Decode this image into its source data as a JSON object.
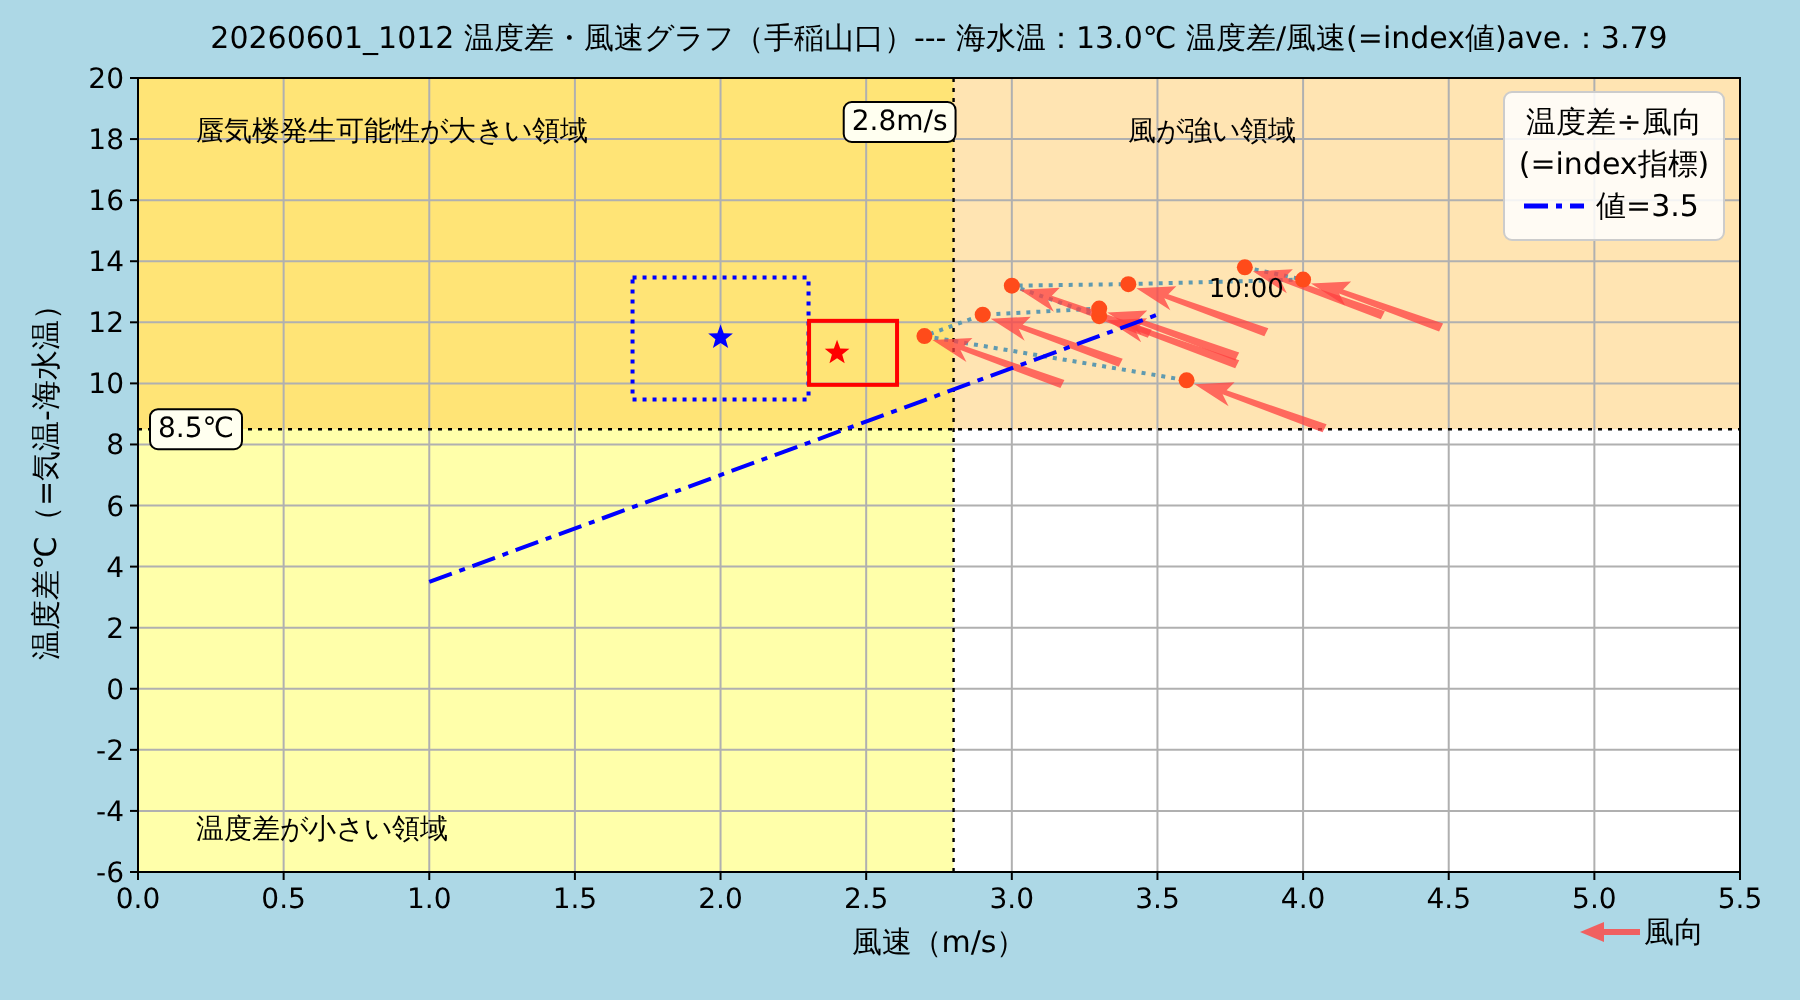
{
  "chart_data": {
    "type": "scatter",
    "title": "20260601_1012 温度差・風速グラフ（手稲山口）--- 海水温：13.0℃     温度差/風速(=index値)ave.：3.79",
    "xlabel": "風速（m/s）",
    "ylabel": "温度差℃（=気温-海水温）",
    "legend_title": "温度差÷風向\n(=index指標)",
    "xlim": [
      0,
      5.5
    ],
    "ylim": [
      -6,
      20
    ],
    "xticks": [
      {
        "value": 0,
        "label": "0.0"
      },
      {
        "value": 0.5,
        "label": "0.5"
      },
      {
        "value": 1,
        "label": "1.0"
      },
      {
        "value": 1.5,
        "label": "1.5"
      },
      {
        "value": 2,
        "label": "2.0"
      },
      {
        "value": 2.5,
        "label": "2.5"
      },
      {
        "value": 3,
        "label": "3.0"
      },
      {
        "value": 3.5,
        "label": "3.5"
      },
      {
        "value": 4,
        "label": "4.0"
      },
      {
        "value": 4.5,
        "label": "4.5"
      },
      {
        "value": 5,
        "label": "5.0"
      },
      {
        "value": 5.5,
        "label": "5.5"
      }
    ],
    "yticks": [
      -6,
      -4,
      -2,
      0,
      2,
      4,
      6,
      8,
      10,
      12,
      14,
      16,
      18,
      20
    ],
    "grid": true,
    "legend": "top right",
    "bands": [
      {
        "axis": "x",
        "from": 0,
        "to": 2.8,
        "color": "#ffffaa"
      },
      {
        "axis": "y",
        "from": 8.5,
        "to": 20,
        "color": "#ffa500"
      }
    ],
    "ref_lines": [
      {
        "axis": "x",
        "value": 2.8,
        "label": "2.8m/s",
        "line_style": "dotted",
        "color": "#000000"
      },
      {
        "axis": "y",
        "value": 8.5,
        "label": "8.5℃",
        "line_style": "dotted",
        "color": "#000000"
      }
    ],
    "series": [
      {
        "type": "line",
        "color": "#5f9ab0",
        "line_style": "dotted",
        "marker": "none",
        "x": [
          3.8,
          4.0,
          3.4,
          3.0,
          3.3,
          3.3,
          2.9,
          2.7,
          3.6
        ],
        "values": [
          13.8,
          13.4,
          13.25,
          13.2,
          12.2,
          12.45,
          12.25,
          11.55,
          10.1
        ]
      },
      {
        "color": "#ff4b1a",
        "marker": "circle",
        "x": [
          3.8,
          4.0,
          3.4,
          3.0,
          3.3,
          3.3,
          2.9,
          2.7,
          3.6
        ],
        "values": [
          13.8,
          13.4,
          13.25,
          13.2,
          12.2,
          12.45,
          12.25,
          11.55,
          10.1
        ]
      },
      {
        "type": "line",
        "name": "値=3.5",
        "color": "#0000ff",
        "line_style": "dashed",
        "marker": "none",
        "x": [
          1,
          3.5
        ],
        "values": [
          3.5,
          12.25
        ]
      },
      {
        "color": "#0000ff",
        "marker": "star",
        "line_style": "dotted",
        "x": [
          2.0
        ],
        "values": [
          11.5
        ]
      },
      {
        "color": "#ff0000",
        "marker": "star",
        "line_style": "solid",
        "x": [
          2.4
        ],
        "values": [
          11.0
        ]
      }
    ],
    "annotations": [
      {
        "text": "10:00",
        "x": 3.8,
        "y": 13.8
      },
      "蜃気楼発生可能性が大きい領域",
      "風が強い領域",
      "温度差が小さい領域",
      "風向"
    ]
  }
}
